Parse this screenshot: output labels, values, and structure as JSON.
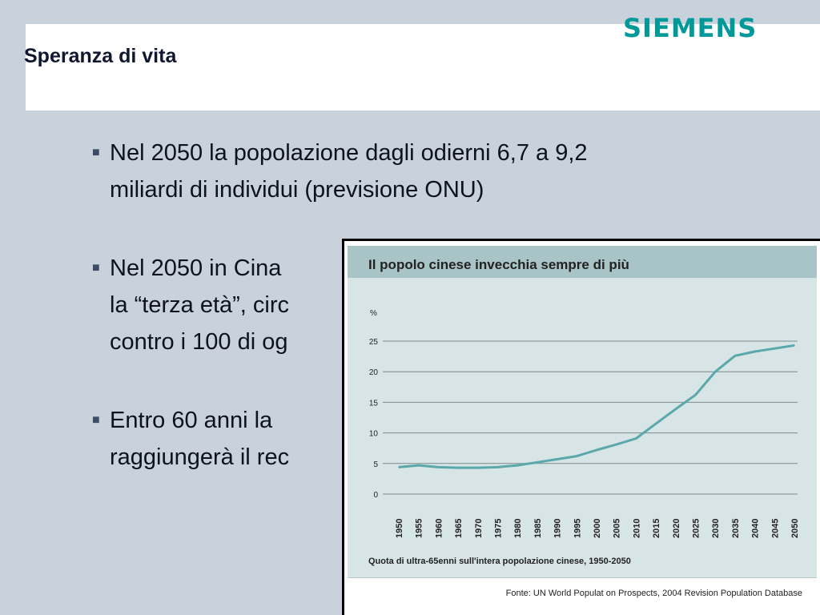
{
  "slide": {
    "title": "Speranza di vita",
    "logo": "SIEMENS",
    "accent_color": "#009999",
    "bullets": [
      {
        "lines": [
          "Nel 2050 la popolazione dagli odierni 6,7 a 9,2",
          "miliardi di individui (previsione ONU)"
        ]
      },
      {
        "lines": [
          "Nel 2050 in Cina",
          "la “terza età”, circ",
          "contro i 100 di og"
        ]
      },
      {
        "lines": [
          "Entro 60 anni la",
          "raggiungerà il rec"
        ]
      }
    ]
  },
  "chart_data": {
    "type": "line",
    "title": "Il popolo cinese invecchia sempre di più",
    "ylabel": "%",
    "xlabel": "Quota di ultra-65enni sull'intera popolazione cinese, 1950-2050",
    "source": "Fonte: UN World Populat on Prospects, 2004 Revision Population Database",
    "ylim": [
      0,
      25
    ],
    "yticks": [
      0,
      5,
      10,
      15,
      20,
      25
    ],
    "grid": true,
    "line_color": "#5aa8aa",
    "x": [
      1950,
      1955,
      1960,
      1965,
      1970,
      1975,
      1980,
      1985,
      1990,
      1995,
      2000,
      2005,
      2010,
      2015,
      2020,
      2025,
      2030,
      2035,
      2040,
      2045,
      2050
    ],
    "x_tick_labels": [
      "1950",
      "1955",
      "1960",
      "1965",
      "1970",
      "1975",
      "1980",
      "1985",
      "1990",
      "1995",
      "2000",
      "2005",
      "2010",
      "2015",
      "2020",
      "2025",
      "2030",
      "2035",
      "2040",
      "2045",
      "2050"
    ],
    "series": [
      {
        "values": [
          4.4,
          4.7,
          4.4,
          4.3,
          4.3,
          4.4,
          4.7,
          5.2,
          5.7,
          6.2,
          7.2,
          8.1,
          9.1,
          11.5,
          13.9,
          16.2,
          20.0,
          22.6,
          23.3,
          23.8,
          24.3
        ]
      }
    ]
  }
}
